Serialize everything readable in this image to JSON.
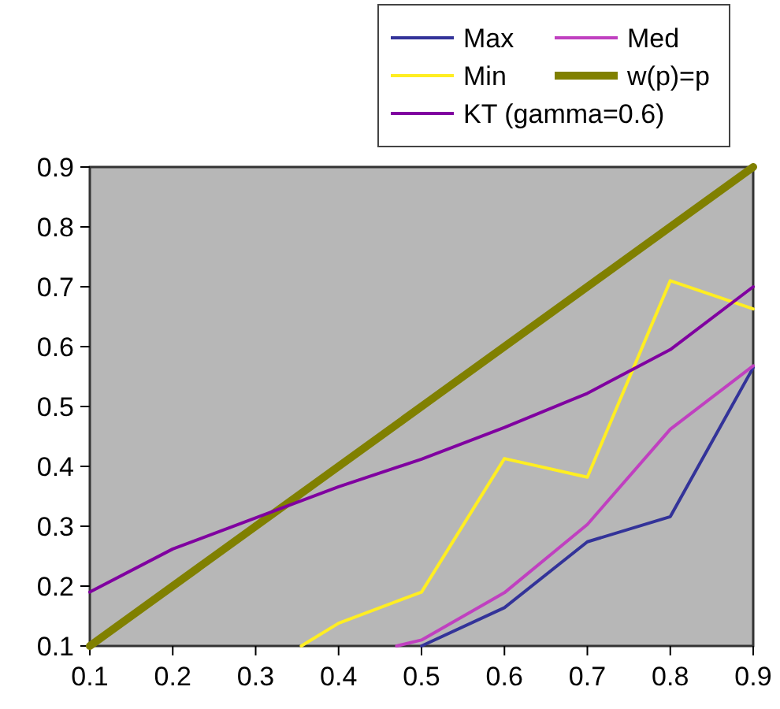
{
  "chart_data": {
    "type": "line",
    "xlim": [
      0.1,
      0.9
    ],
    "ylim": [
      0.1,
      0.9
    ],
    "xticks": [
      0.1,
      0.2,
      0.3,
      0.4,
      0.5,
      0.6,
      0.7,
      0.8,
      0.9
    ],
    "yticks": [
      0.1,
      0.2,
      0.3,
      0.4,
      0.5,
      0.6,
      0.7,
      0.8,
      0.9
    ],
    "grid": false,
    "legend": "top right",
    "marker": "none",
    "line_style": "solid",
    "series": [
      {
        "name": "Max",
        "color": "#333399",
        "x": [
          0.5,
          0.6,
          0.7,
          0.8,
          0.9
        ],
        "values": [
          0.1,
          0.164,
          0.274,
          0.316,
          0.565
        ]
      },
      {
        "name": "Med",
        "color": "#c040c0",
        "x": [
          0.47,
          0.5,
          0.6,
          0.7,
          0.8,
          0.9
        ],
        "values": [
          0.1,
          0.11,
          0.189,
          0.303,
          0.462,
          0.568
        ]
      },
      {
        "name": "Min",
        "color": "#ffee22",
        "x": [
          0.355,
          0.4,
          0.5,
          0.6,
          0.7,
          0.8,
          0.9
        ],
        "values": [
          0.1,
          0.138,
          0.19,
          0.413,
          0.382,
          0.71,
          0.663
        ]
      },
      {
        "name": "w(p)=p",
        "color": "#808000",
        "x": [
          0.1,
          0.9
        ],
        "values": [
          0.1,
          0.9
        ]
      },
      {
        "name": "KT (gamma=0.6)",
        "color": "#8000a0",
        "x": [
          0.1,
          0.2,
          0.3,
          0.4,
          0.5,
          0.6,
          0.7,
          0.8,
          0.9
        ],
        "values": [
          0.19,
          0.262,
          0.314,
          0.366,
          0.412,
          0.465,
          0.522,
          0.595,
          0.7
        ]
      }
    ]
  }
}
